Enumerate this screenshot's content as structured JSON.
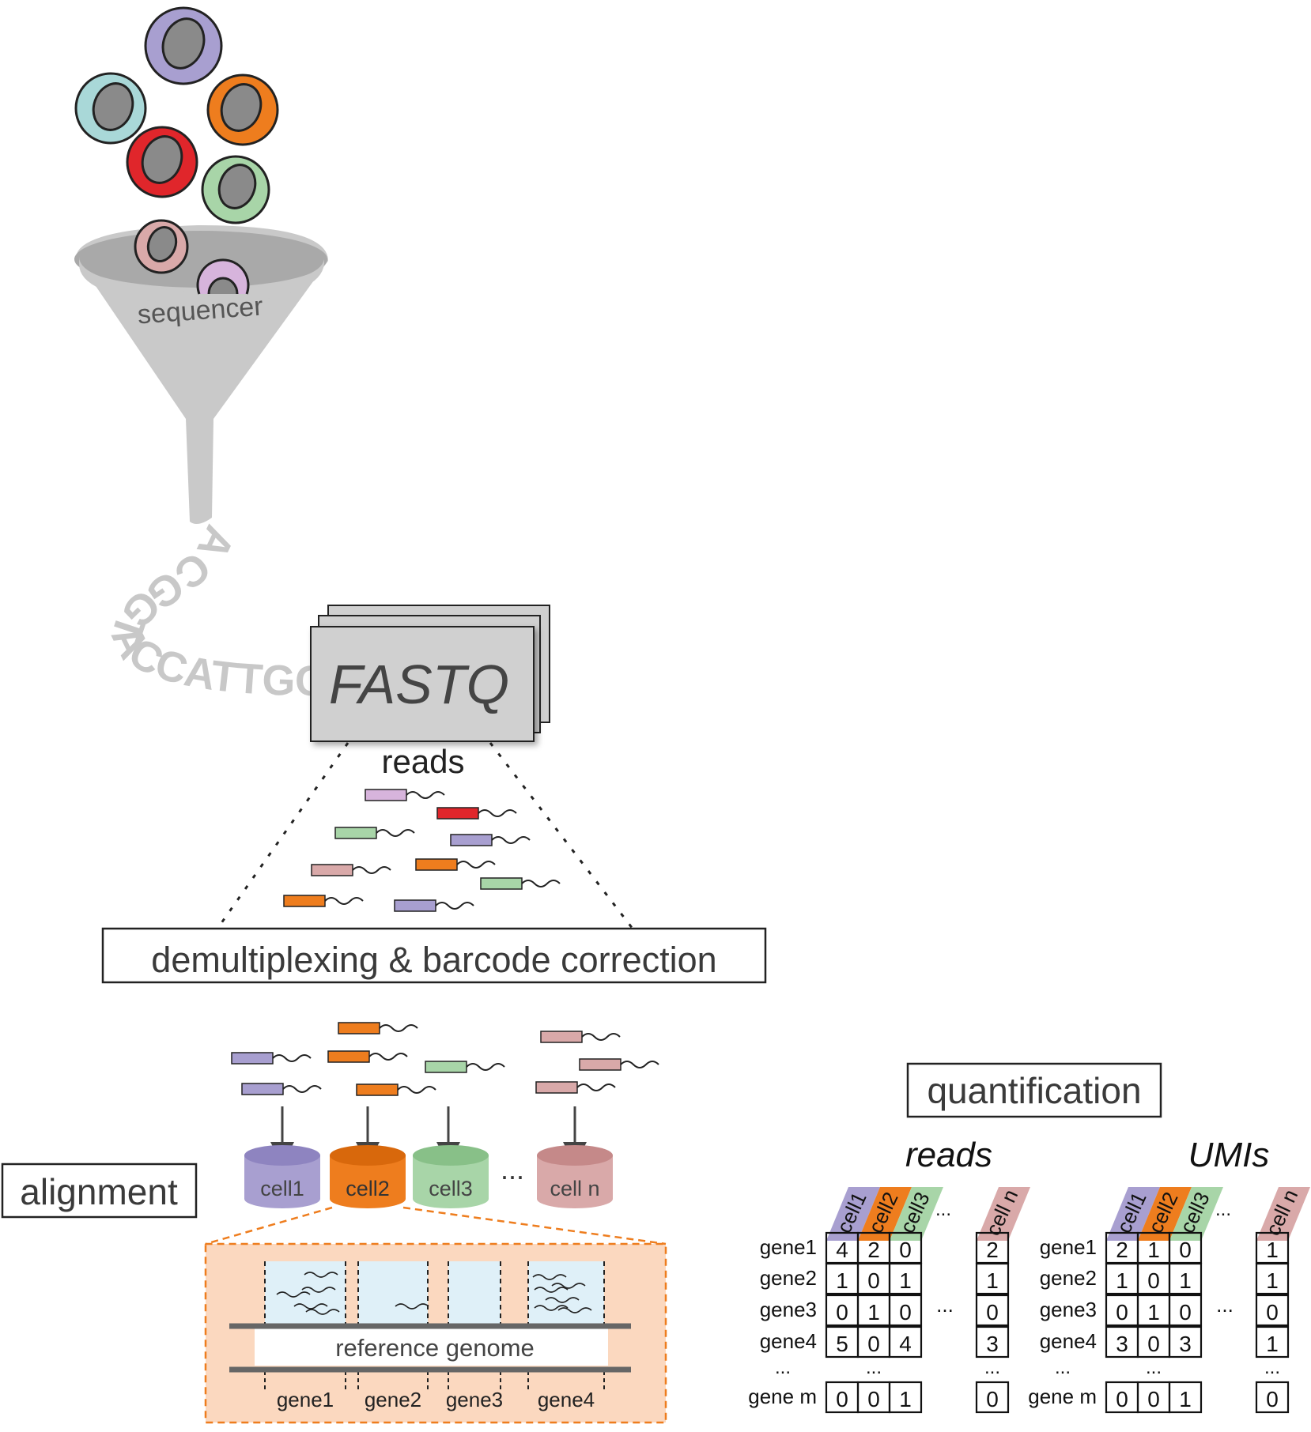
{
  "funnel": {
    "label": "sequencer"
  },
  "sequence_text": "ACGGTACCATTGCCAT",
  "fastq": {
    "label": "FASTQ",
    "reads_label": "reads"
  },
  "steps": {
    "demux": "demultiplexing & barcode correction",
    "alignment": "alignment",
    "quantification": "quantification"
  },
  "bins": [
    "cell1",
    "cell2",
    "cell3",
    "...",
    "cell n"
  ],
  "reference": {
    "label": "reference genome",
    "genes": [
      "gene1",
      "gene2",
      "gene3",
      "gene4"
    ]
  },
  "colors": {
    "purple": "#a89fd0",
    "orange": "#ee7d1e",
    "green": "#a8d5a8",
    "pink": "#d9a9a9",
    "red": "#e0262b",
    "teal": "#a9d8d8",
    "lilac": "#d7b4dc",
    "funnel": "#c8c8c8",
    "inset_bg": "#fbd8bf",
    "gene_region": "#dff0f8"
  },
  "matrices": [
    {
      "title": "reads",
      "columns": [
        "cell1",
        "cell2",
        "cell3",
        "cell n"
      ],
      "rows": [
        {
          "gene": "gene1",
          "values": [
            "4",
            "2",
            "0",
            "2"
          ]
        },
        {
          "gene": "gene2",
          "values": [
            "1",
            "0",
            "1",
            "1"
          ]
        },
        {
          "gene": "gene3",
          "values": [
            "0",
            "1",
            "0",
            "0"
          ]
        },
        {
          "gene": "gene4",
          "values": [
            "5",
            "0",
            "4",
            "3"
          ]
        },
        {
          "gene": "gene m",
          "values": [
            "0",
            "0",
            "1",
            "0"
          ]
        }
      ]
    },
    {
      "title": "UMIs",
      "columns": [
        "cell1",
        "cell2",
        "cell3",
        "cell n"
      ],
      "rows": [
        {
          "gene": "gene1",
          "values": [
            "2",
            "1",
            "0",
            "1"
          ]
        },
        {
          "gene": "gene2",
          "values": [
            "1",
            "0",
            "1",
            "1"
          ]
        },
        {
          "gene": "gene3",
          "values": [
            "0",
            "1",
            "0",
            "0"
          ]
        },
        {
          "gene": "gene4",
          "values": [
            "3",
            "0",
            "3",
            "1"
          ]
        },
        {
          "gene": "gene m",
          "values": [
            "0",
            "0",
            "1",
            "0"
          ]
        }
      ]
    }
  ],
  "ellipsis": "..."
}
